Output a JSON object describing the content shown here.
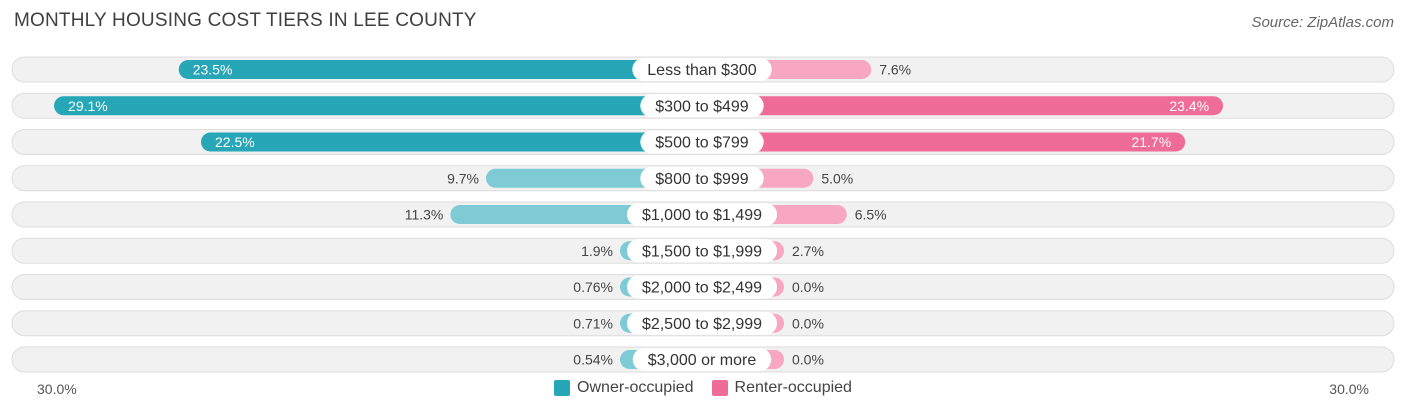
{
  "title": "MONTHLY HOUSING COST TIERS IN LEE COUNTY",
  "source": "Source: ZipAtlas.com",
  "chart_data": {
    "type": "bar",
    "orientation": "diverging-horizontal",
    "categories": [
      "Less than $300",
      "$300 to $499",
      "$500 to $799",
      "$800 to $999",
      "$1,000 to $1,499",
      "$1,500 to $1,999",
      "$2,000 to $2,499",
      "$2,500 to $2,999",
      "$3,000 or more"
    ],
    "series": [
      {
        "name": "Owner-occupied",
        "values": [
          23.5,
          29.1,
          22.5,
          9.7,
          11.3,
          1.9,
          0.76,
          0.71,
          0.54
        ],
        "labels": [
          "23.5%",
          "29.1%",
          "22.5%",
          "9.7%",
          "11.3%",
          "1.9%",
          "0.76%",
          "0.71%",
          "0.54%"
        ],
        "color_strong": "#27a6b8",
        "color_light": "#7ecbd6"
      },
      {
        "name": "Renter-occupied",
        "values": [
          7.6,
          23.4,
          21.7,
          5.0,
          6.5,
          2.7,
          0.0,
          0.0,
          0.0
        ],
        "labels": [
          "7.6%",
          "23.4%",
          "21.7%",
          "5.0%",
          "6.5%",
          "2.7%",
          "0.0%",
          "0.0%",
          "0.0%"
        ],
        "color_strong": "#f06c98",
        "color_light": "#f7a7c1"
      }
    ],
    "xlim": [
      -30,
      30
    ],
    "axis_left_label": "30.0%",
    "axis_right_label": "30.0%",
    "legend": "bottom-center"
  }
}
